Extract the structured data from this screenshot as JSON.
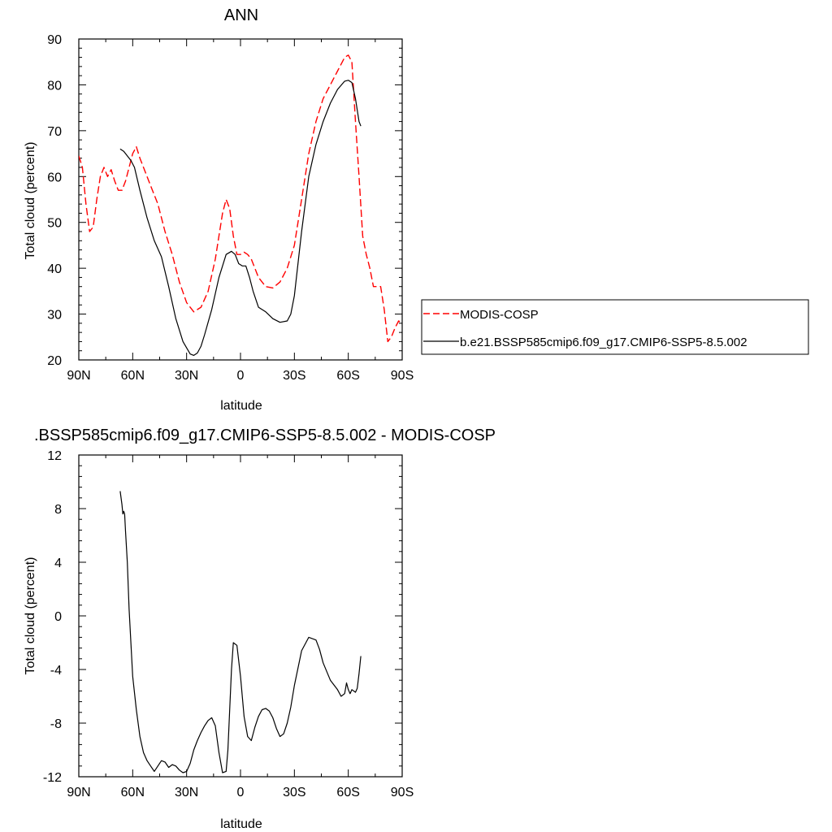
{
  "chart_data": [
    {
      "type": "line",
      "title": "ANN",
      "xlabel": "latitude",
      "ylabel": "Total cloud (percent)",
      "xlim": [
        -90,
        90
      ],
      "ylim": [
        20,
        90
      ],
      "x_ticks": [
        -90,
        -60,
        -30,
        0,
        30,
        60,
        90
      ],
      "x_tick_labels": [
        "90N",
        "60N",
        "30N",
        "0",
        "30S",
        "60S",
        "90S"
      ],
      "y_ticks": [
        20,
        30,
        40,
        50,
        60,
        70,
        80,
        90
      ],
      "y_tick_labels": [
        "20",
        "30",
        "40",
        "50",
        "60",
        "70",
        "80",
        "90"
      ],
      "legend_position": "right",
      "series": [
        {
          "name": "MODIS-COSP",
          "color": "#ff0000",
          "dash": "dashed",
          "x": [
            -90,
            -88,
            -86,
            -84,
            -82,
            -80,
            -78,
            -76,
            -74,
            -72,
            -70,
            -68,
            -66,
            -64,
            -62,
            -60,
            -58,
            -56,
            -54,
            -50,
            -46,
            -42,
            -38,
            -34,
            -30,
            -26,
            -22,
            -18,
            -14,
            -10,
            -8,
            -6,
            -4,
            -2,
            0,
            2,
            4,
            6,
            8,
            10,
            14,
            18,
            22,
            26,
            30,
            34,
            38,
            42,
            46,
            50,
            54,
            58,
            60,
            62,
            64,
            66,
            68,
            70,
            72,
            74,
            76,
            78,
            80,
            82,
            84,
            86,
            88,
            90
          ],
          "y": [
            64.5,
            62,
            54,
            48,
            49,
            55,
            60,
            62,
            60,
            61.5,
            59,
            57,
            57,
            59,
            62,
            65,
            66.5,
            64,
            62,
            58,
            54,
            48,
            43,
            37,
            32.5,
            30.5,
            31.5,
            35,
            42,
            52,
            55,
            53,
            47,
            43,
            43,
            43.5,
            43,
            42,
            40,
            38,
            36,
            35.7,
            37,
            40,
            45,
            55,
            65,
            72,
            77,
            80,
            83,
            86,
            86.5,
            85,
            72,
            60,
            47,
            43,
            40,
            36,
            36,
            36,
            31,
            24,
            25,
            27,
            28.5,
            28
          ]
        },
        {
          "name": "b.e21.BSSP585cmip6.f09_g17.CMIP6-SSP5-8.5.002",
          "color": "#000000",
          "dash": "solid",
          "x": [
            -67,
            -65,
            -63,
            -61,
            -59,
            -56,
            -52,
            -48,
            -44,
            -40,
            -36,
            -32,
            -28,
            -26,
            -24,
            -22,
            -20,
            -16,
            -12,
            -8,
            -5,
            -3,
            -1,
            1,
            3,
            5,
            7,
            10,
            14,
            18,
            22,
            26,
            28,
            30,
            34,
            38,
            42,
            46,
            50,
            54,
            58,
            60,
            62,
            64,
            66,
            67
          ],
          "y": [
            66,
            65.5,
            64.5,
            63.5,
            62,
            57,
            51,
            46,
            42.5,
            36,
            29,
            24,
            21.3,
            21,
            21.5,
            23,
            25.5,
            31,
            38,
            43,
            43.7,
            43,
            41,
            40.5,
            40.5,
            38,
            35,
            31.5,
            30.5,
            29,
            28.2,
            28.5,
            30,
            34,
            48,
            60,
            67,
            72,
            76,
            79,
            80.8,
            81,
            80.5,
            77,
            72,
            71
          ]
        }
      ]
    },
    {
      "type": "line",
      "title": ".BSSP585cmip6.f09_g17.CMIP6-SSP5-8.5.002 - MODIS-COSP",
      "xlabel": "latitude",
      "ylabel": "Total cloud (percent)",
      "xlim": [
        -90,
        90
      ],
      "ylim": [
        -12,
        12
      ],
      "x_ticks": [
        -90,
        -60,
        -30,
        0,
        30,
        60,
        90
      ],
      "x_tick_labels": [
        "90N",
        "60N",
        "30N",
        "0",
        "30S",
        "60S",
        "90S"
      ],
      "y_ticks": [
        -12,
        -8,
        -4,
        0,
        4,
        8,
        12
      ],
      "y_tick_labels": [
        "-12",
        "-8",
        "-4",
        "0",
        "4",
        "8",
        "12"
      ],
      "series": [
        {
          "color": "#000000",
          "dash": "solid",
          "x": [
            -67,
            -66,
            -65.5,
            -65,
            -64.5,
            -64,
            -63,
            -62,
            -60,
            -58,
            -56,
            -54,
            -52,
            -50,
            -48,
            -46,
            -44,
            -42,
            -40,
            -38,
            -36,
            -34,
            -32,
            -30,
            -28,
            -26,
            -24,
            -22,
            -20,
            -18,
            -16,
            -14,
            -12,
            -10,
            -8,
            -7,
            -6,
            -5,
            -4,
            -2,
            0,
            2,
            4,
            6,
            8,
            10,
            12,
            14,
            16,
            18,
            20,
            22,
            24,
            26,
            28,
            30,
            34,
            38,
            42,
            44,
            46,
            50,
            54,
            56,
            58,
            59,
            60,
            61,
            62,
            64,
            65,
            66,
            67
          ],
          "y": [
            9.3,
            8.3,
            7.6,
            7.8,
            7.6,
            6.3,
            4,
            0.5,
            -4.5,
            -7,
            -9,
            -10.2,
            -10.8,
            -11.2,
            -11.6,
            -11.2,
            -10.8,
            -10.9,
            -11.3,
            -11.1,
            -11.2,
            -11.5,
            -11.7,
            -11.6,
            -11,
            -10,
            -9.3,
            -8.7,
            -8.2,
            -7.8,
            -7.6,
            -8.2,
            -10.2,
            -11.7,
            -11.6,
            -10,
            -7,
            -4,
            -2,
            -2.2,
            -4.5,
            -7.5,
            -9,
            -9.3,
            -8.3,
            -7.5,
            -7,
            -6.9,
            -7.1,
            -7.6,
            -8.4,
            -9,
            -8.8,
            -8,
            -6.8,
            -5.2,
            -2.6,
            -1.6,
            -1.8,
            -2.5,
            -3.5,
            -4.8,
            -5.5,
            -6,
            -5.8,
            -5,
            -5.5,
            -5.8,
            -5.5,
            -5.7,
            -5.4,
            -4.3,
            -3
          ]
        }
      ]
    }
  ]
}
